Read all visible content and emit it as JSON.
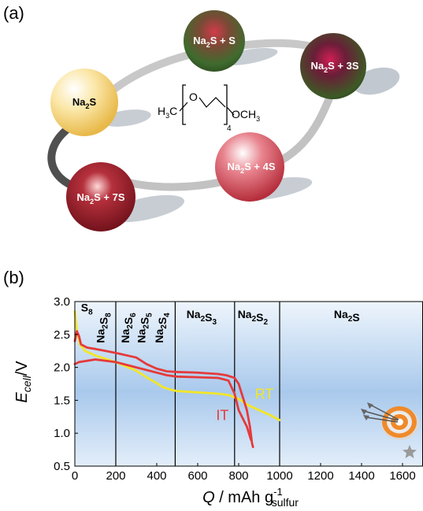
{
  "panel_a": {
    "label": "(a)",
    "spheres": [
      {
        "base": "Na",
        "sub": "2",
        "rest": "S",
        "color": "#f6d88a"
      },
      {
        "base": "Na",
        "sub": "2",
        "rest": "S + S",
        "color": "#5c7a3a"
      },
      {
        "base": "Na",
        "sub": "2",
        "rest": "S + 3S",
        "color": "#3b4a2a"
      },
      {
        "base": "Na",
        "sub": "2",
        "rest": "S + 4S",
        "color": "#d65a66"
      },
      {
        "base": "Na",
        "sub": "2",
        "rest": "S + 7S",
        "color": "#a0202c"
      }
    ],
    "molecule": {
      "left": "H",
      "left_sub": "3",
      "left_tail": "C",
      "oxygen": "O",
      "repeat_sub": "4",
      "right": "OCH",
      "right_sub": "3"
    }
  },
  "panel_b": {
    "label": "(b)",
    "chart_data": {
      "type": "line",
      "ylabel_main": "E",
      "ylabel_sub": "cell",
      "ylabel_tail": "/V",
      "xlabel_main": "Q",
      "xlabel_rest": " / mAh g",
      "xlabel_sup": "-1",
      "xlabel_sub": "sulfur",
      "xlim": [
        0,
        1700
      ],
      "ylim": [
        0.5,
        3.0
      ],
      "xticks": [
        "0",
        "200",
        "400",
        "600",
        "800",
        "1000",
        "1200",
        "1400",
        "1600"
      ],
      "yticks": [
        "0.5",
        "1.0",
        "1.5",
        "2.0",
        "2.5",
        "3.0"
      ],
      "phase_lines": [
        200,
        490,
        780,
        1000
      ],
      "phases": [
        {
          "parts": [
            {
              "t": "S",
              "s": "8"
            }
          ],
          "x": 30,
          "y": 2.85,
          "vertical": false
        },
        {
          "parts": [
            {
              "t": "Na",
              "s": "2"
            },
            {
              "t": "S",
              "s": "8"
            }
          ],
          "x": 145,
          "y": 2.6,
          "vertical": true
        },
        {
          "parts": [
            {
              "t": "Na",
              "s": "2"
            },
            {
              "t": "S",
              "s": "6"
            }
          ],
          "x": 265,
          "y": 2.6,
          "vertical": true
        },
        {
          "parts": [
            {
              "t": "Na",
              "s": "2"
            },
            {
              "t": "S",
              "s": "5"
            }
          ],
          "x": 345,
          "y": 2.6,
          "vertical": true
        },
        {
          "parts": [
            {
              "t": "Na",
              "s": "2"
            },
            {
              "t": "S",
              "s": "4"
            }
          ],
          "x": 430,
          "y": 2.6,
          "vertical": true
        },
        {
          "parts": [
            {
              "t": "Na",
              "s": "2"
            },
            {
              "t": "S",
              "s": "3"
            }
          ],
          "x": 545,
          "y": 2.75,
          "vertical": false
        },
        {
          "parts": [
            {
              "t": "Na",
              "s": "2"
            },
            {
              "t": "S",
              "s": "2"
            }
          ],
          "x": 795,
          "y": 2.75,
          "vertical": false
        },
        {
          "parts": [
            {
              "t": "Na",
              "s": "2"
            },
            {
              "t": "S",
              "s": ""
            }
          ],
          "x": 1265,
          "y": 2.75,
          "vertical": false
        }
      ],
      "series": [
        {
          "name": "RT",
          "color": "#f2e628",
          "label_x": 880,
          "label_y": 1.52,
          "x": [
            0,
            10,
            25,
            50,
            100,
            200,
            300,
            350,
            400,
            430,
            470,
            500,
            600,
            700,
            750,
            800,
            850,
            900,
            950,
            1000
          ],
          "y": [
            2.85,
            2.55,
            2.35,
            2.25,
            2.18,
            2.08,
            1.95,
            1.85,
            1.76,
            1.7,
            1.66,
            1.64,
            1.62,
            1.6,
            1.58,
            1.52,
            1.42,
            1.35,
            1.28,
            1.2
          ]
        },
        {
          "name": "IT",
          "color": "#e53a3a",
          "label_x": 690,
          "label_y": 1.2,
          "x": [
            0,
            10,
            20,
            30,
            60,
            100,
            200,
            300,
            350,
            400,
            450,
            500,
            600,
            700,
            740,
            780,
            800,
            820,
            840,
            855,
            865,
            870
          ],
          "y": [
            2.4,
            2.55,
            2.48,
            2.35,
            2.3,
            2.28,
            2.22,
            2.15,
            2.05,
            1.98,
            1.94,
            1.93,
            1.92,
            1.9,
            1.88,
            1.84,
            1.75,
            1.55,
            1.35,
            1.1,
            0.85,
            0.79
          ]
        },
        {
          "name": "",
          "color": "#e53a3a",
          "label_x": 0,
          "label_y": 0,
          "x": [
            0,
            20,
            100,
            200,
            300,
            400,
            450,
            500,
            600,
            700,
            750,
            780,
            800,
            840,
            860
          ],
          "y": [
            2.05,
            2.08,
            2.12,
            2.08,
            2.0,
            1.92,
            1.88,
            1.86,
            1.85,
            1.84,
            1.8,
            1.6,
            1.35,
            1.1,
            0.9
          ]
        }
      ]
    }
  }
}
